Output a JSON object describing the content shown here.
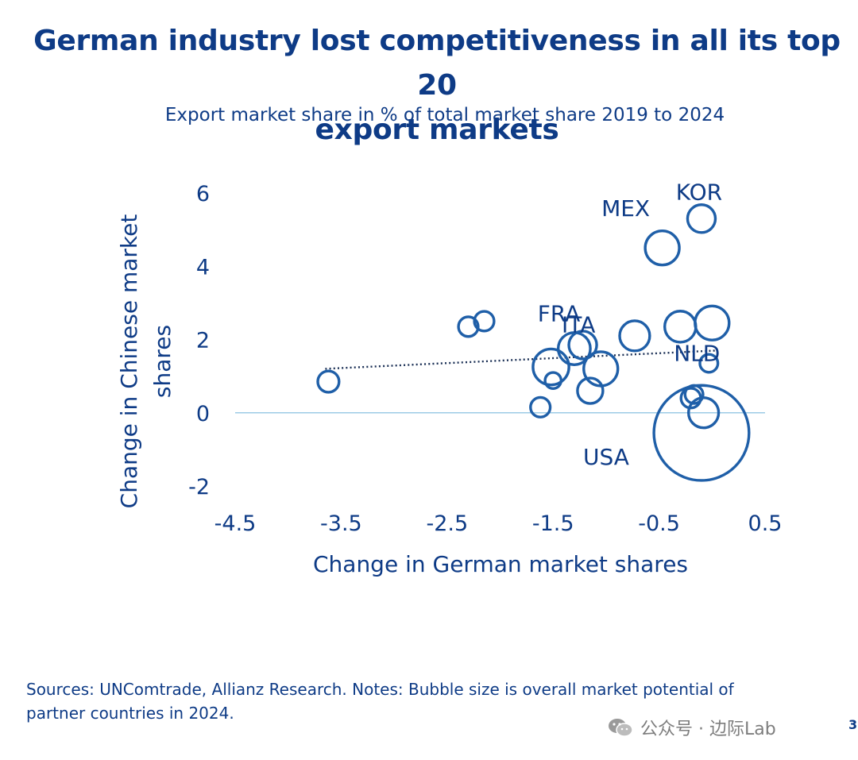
{
  "page": {
    "title_line1": "German industry lost competitiveness in all its top 20",
    "title_line2": "export markets",
    "subtitle": "Export market share in % of total market share 2019 to 2024",
    "footer_line1": "Sources: UNComtrade, Allianz Research. Notes: Bubble size is overall market potential of",
    "footer_line2": "partner countries in 2024.",
    "watermark": "公众号 · 边际Lab",
    "page_number": "3"
  },
  "colors": {
    "brand": "#0e3b86",
    "bubble_stroke": "#1f5fa8",
    "zero_line": "#9ccbe6",
    "trend": "#1a2f55"
  },
  "chart_data": {
    "type": "scatter",
    "xlabel": "Change in German market shares",
    "ylabel": "Change in Chinese market shares",
    "ylabel_line1": "Change in Chinese market",
    "ylabel_line2": "shares",
    "xlim": [
      -4.5,
      0.5
    ],
    "ylim": [
      -2,
      6
    ],
    "xticks": [
      -4.5,
      -3.5,
      -2.5,
      -1.5,
      -0.5,
      0.5
    ],
    "xtick_labels": [
      "-4.5",
      "-3.5",
      "-2.5",
      "-1.5",
      "-0.5",
      "0.5"
    ],
    "yticks": [
      6,
      4,
      2,
      0,
      -2
    ],
    "ytick_labels": [
      "6",
      "4",
      "2",
      "0",
      "-2"
    ],
    "trendline": {
      "style": "dotted",
      "x": [
        -3.65,
        0.05
      ],
      "y": [
        1.2,
        1.7
      ]
    },
    "points": [
      {
        "label": "KOR",
        "x": -0.1,
        "y": 5.3,
        "size": 0.6
      },
      {
        "label": "MEX",
        "x": -0.47,
        "y": 4.5,
        "size": 0.9
      },
      {
        "label": "",
        "x": -3.62,
        "y": 0.85,
        "size": 0.35
      },
      {
        "label": "",
        "x": -2.3,
        "y": 2.35,
        "size": 0.3
      },
      {
        "label": "",
        "x": -2.15,
        "y": 2.5,
        "size": 0.3
      },
      {
        "label": "",
        "x": -1.62,
        "y": 0.15,
        "size": 0.3
      },
      {
        "label": "",
        "x": -1.5,
        "y": 0.88,
        "size": 0.2
      },
      {
        "label": "",
        "x": -1.52,
        "y": 1.25,
        "size": 1.0
      },
      {
        "label": "",
        "x": -1.3,
        "y": 1.75,
        "size": 0.8
      },
      {
        "label": "FRA",
        "x": -1.22,
        "y": 1.85,
        "size": 0.6
      },
      {
        "label": "ITA",
        "x": -1.05,
        "y": 1.2,
        "size": 0.9
      },
      {
        "label": "",
        "x": -1.15,
        "y": 0.6,
        "size": 0.5
      },
      {
        "label": "",
        "x": -0.73,
        "y": 2.1,
        "size": 0.7
      },
      {
        "label": "",
        "x": -0.3,
        "y": 2.35,
        "size": 0.75
      },
      {
        "label": "",
        "x": 0.0,
        "y": 2.45,
        "size": 0.9
      },
      {
        "label": "NLD",
        "x": -0.03,
        "y": 1.35,
        "size": 0.25
      },
      {
        "label": "",
        "x": -0.2,
        "y": 0.4,
        "size": 0.3
      },
      {
        "label": "",
        "x": -0.17,
        "y": 0.5,
        "size": 0.25
      },
      {
        "label": "",
        "x": -0.08,
        "y": 0.0,
        "size": 0.7
      },
      {
        "label": "USA",
        "x": -0.1,
        "y": -0.55,
        "size": 7.0
      }
    ]
  }
}
